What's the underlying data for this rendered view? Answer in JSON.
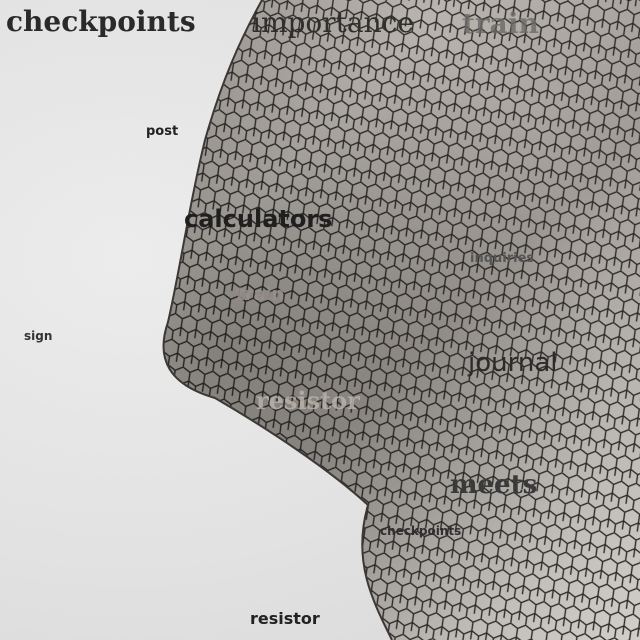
{
  "colors": {
    "sky": "#e4e4e4",
    "facade": "#a9a49f",
    "facade_shadow": "#6d6863",
    "tile_edge": "#2e2c2a"
  },
  "words": [
    "checkpoints",
    "importance",
    "train",
    "post",
    "calculators",
    "inquiries",
    "train",
    "sign",
    "journal",
    "resistor",
    "meets",
    "checkpoints",
    "resistor"
  ]
}
